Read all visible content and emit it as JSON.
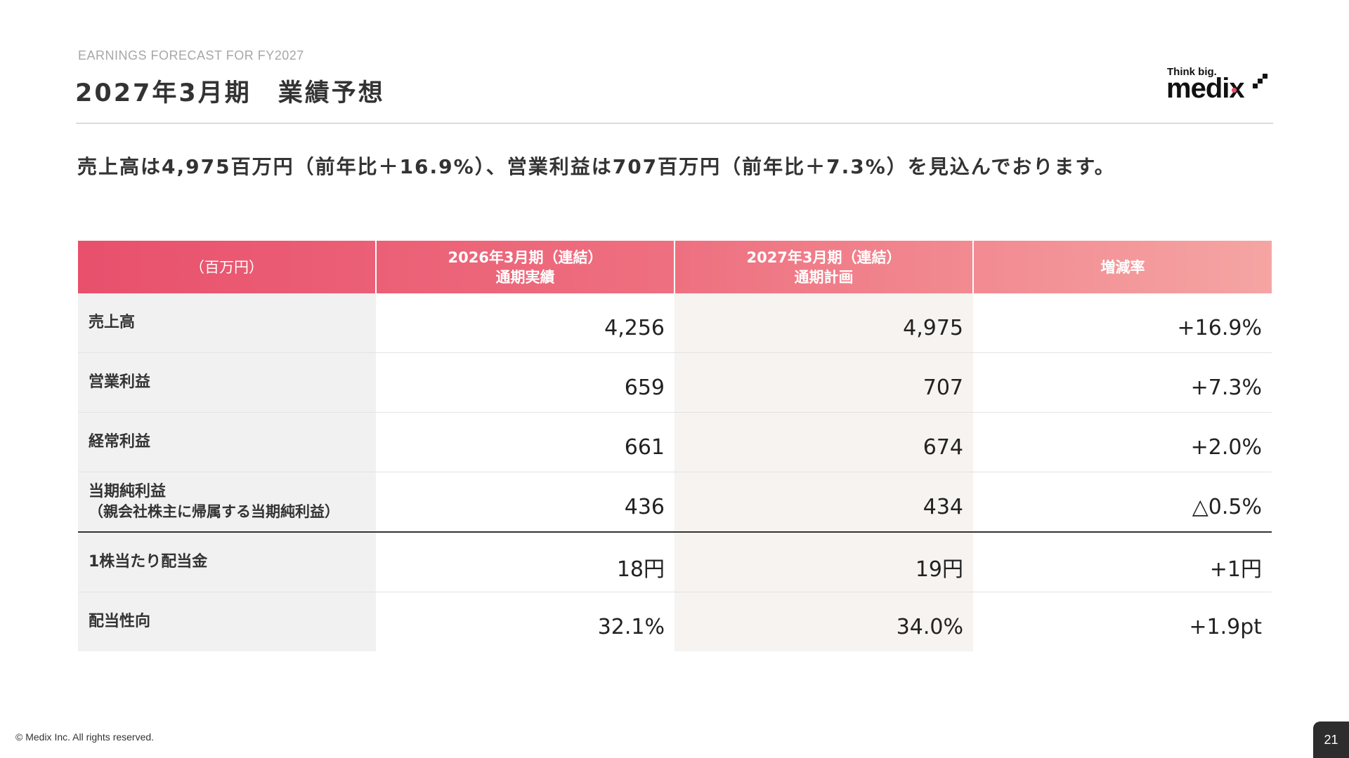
{
  "header": {
    "eyebrow": "EARNINGS FORECAST FOR FY2027",
    "title": "2027年3月期　業績予想"
  },
  "logo": {
    "tagline": "Think big.",
    "wordmark": "medix",
    "accent_color": "#e8506c"
  },
  "lead": "売上高は4,975百万円（前年比＋16.9%）、営業利益は707百万円（前年比＋7.3%）を見込んでおります。",
  "table": {
    "headers": [
      {
        "line1": "（百万円）",
        "line2": ""
      },
      {
        "line1": "2026年3月期（連結）",
        "line2": "通期実績"
      },
      {
        "line1": "2027年3月期（連結）",
        "line2": "通期計画"
      },
      {
        "line1": "増減率",
        "line2": ""
      }
    ],
    "rows": [
      {
        "label": "売上高",
        "sub": "",
        "fy2026": "4,256",
        "fy2027": "4,975",
        "change": "+16.9%"
      },
      {
        "label": "営業利益",
        "sub": "",
        "fy2026": "659",
        "fy2027": "707",
        "change": "+7.3%"
      },
      {
        "label": "経常利益",
        "sub": "",
        "fy2026": "661",
        "fy2027": "674",
        "change": "+2.0%"
      },
      {
        "label": "当期純利益",
        "sub": "（親会社株主に帰属する当期純利益）",
        "fy2026": "436",
        "fy2027": "434",
        "change": "△0.5%"
      },
      {
        "label": "1株当たり配当金",
        "sub": "",
        "fy2026": "18円",
        "fy2027": "19円",
        "change": "+1円"
      },
      {
        "label": "配当性向",
        "sub": "",
        "fy2026": "32.1%",
        "fy2027": "34.0%",
        "change": "+1.9pt"
      }
    ]
  },
  "footer": {
    "copyright": "© Medix Inc. All rights reserved.",
    "page_number": "21"
  }
}
